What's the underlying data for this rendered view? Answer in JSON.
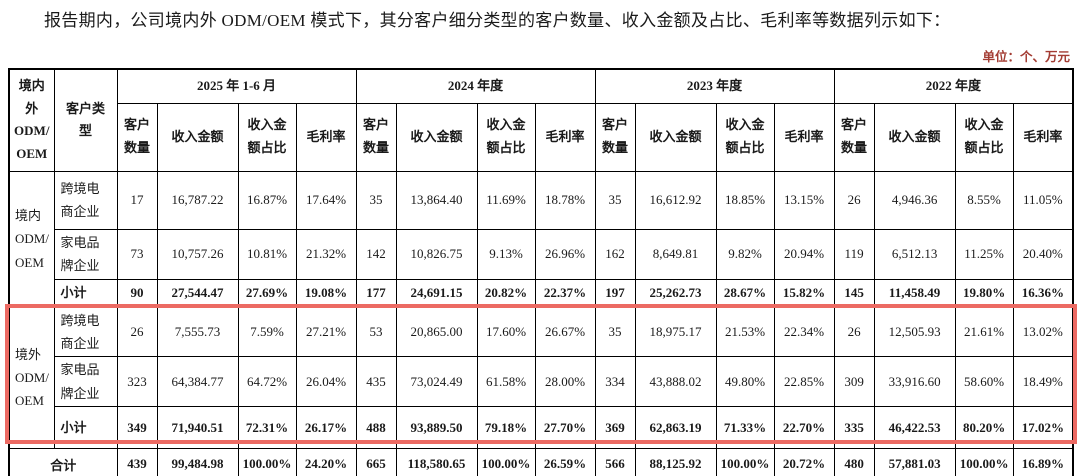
{
  "title": "报告期内，公司境内外 ODM/OEM 模式下，其分客户细分类型的客户数量、收入金额及占比、毛利率等数据列示如下：",
  "unit_label": "单位：个、万元",
  "colors": {
    "highlight_border": "#ec6a63",
    "unit_text": "#a33c33",
    "table_border": "#000000"
  },
  "table": {
    "corner_header": "境内\n外\nODM/\nOEM",
    "customer_type_header": "客户类\n型",
    "period_headers": [
      "2025 年 1-6 月",
      "2024 年度",
      "2023 年度",
      "2022 年度"
    ],
    "metric_headers": [
      "客户\n数量",
      "收入金额",
      "收入金\n额占比",
      "毛利率"
    ],
    "groups": [
      {
        "region": "境内\nODM/\nOEM",
        "highlighted": false,
        "rows": [
          {
            "type": "跨境电\n商企业",
            "bold": false,
            "values": [
              "17",
              "16,787.22",
              "16.87%",
              "17.64%",
              "35",
              "13,864.40",
              "11.69%",
              "18.78%",
              "35",
              "16,612.92",
              "18.85%",
              "13.15%",
              "26",
              "4,946.36",
              "8.55%",
              "11.05%"
            ]
          },
          {
            "type": "家电品\n牌企业",
            "bold": false,
            "values": [
              "73",
              "10,757.26",
              "10.81%",
              "21.32%",
              "142",
              "10,826.75",
              "9.13%",
              "26.96%",
              "162",
              "8,649.81",
              "9.82%",
              "20.94%",
              "119",
              "6,512.13",
              "11.25%",
              "20.40%"
            ]
          },
          {
            "type": "小计",
            "bold": true,
            "values": [
              "90",
              "27,544.47",
              "27.69%",
              "19.08%",
              "177",
              "24,691.15",
              "20.82%",
              "22.37%",
              "197",
              "25,262.73",
              "28.67%",
              "15.82%",
              "145",
              "11,458.49",
              "19.80%",
              "16.36%"
            ]
          }
        ]
      },
      {
        "region": "境外\nODM/\nOEM",
        "highlighted": true,
        "rows": [
          {
            "type": "跨境电\n商企业",
            "bold": false,
            "values": [
              "26",
              "7,555.73",
              "7.59%",
              "27.21%",
              "53",
              "20,865.00",
              "17.60%",
              "26.67%",
              "35",
              "18,975.17",
              "21.53%",
              "22.34%",
              "26",
              "12,505.93",
              "21.61%",
              "13.02%"
            ]
          },
          {
            "type": "家电品\n牌企业",
            "bold": false,
            "values": [
              "323",
              "64,384.77",
              "64.72%",
              "26.04%",
              "435",
              "73,024.49",
              "61.58%",
              "28.00%",
              "334",
              "43,888.02",
              "49.80%",
              "22.85%",
              "309",
              "33,916.60",
              "58.60%",
              "18.49%"
            ]
          },
          {
            "type": "小计",
            "bold": true,
            "values": [
              "349",
              "71,940.51",
              "72.31%",
              "26.17%",
              "488",
              "93,889.50",
              "79.18%",
              "27.70%",
              "369",
              "62,863.19",
              "71.33%",
              "22.70%",
              "335",
              "46,422.53",
              "80.20%",
              "17.02%"
            ]
          }
        ]
      }
    ],
    "total_row": {
      "label": "合计",
      "values": [
        "439",
        "99,484.98",
        "100.00%",
        "24.20%",
        "665",
        "118,580.65",
        "100.00%",
        "26.59%",
        "566",
        "88,125.92",
        "100.00%",
        "20.72%",
        "480",
        "57,881.03",
        "100.00%",
        "16.89%"
      ]
    }
  }
}
